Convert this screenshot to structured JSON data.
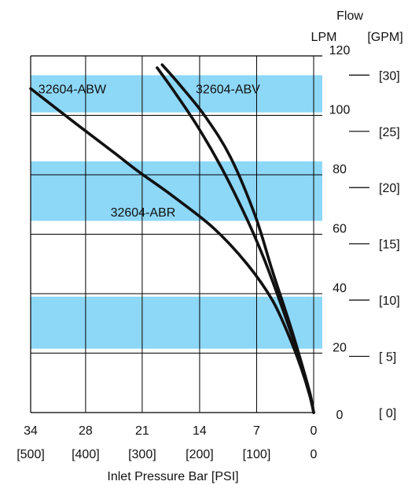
{
  "chart_data": {
    "type": "line",
    "title": "",
    "xlabel": "Inlet Pressure Bar [PSI]",
    "ylabel_title": "Flow",
    "ylabel_units_primary": "LPM",
    "ylabel_units_secondary": "[GPM]",
    "x_reversed": true,
    "xlim": [
      0,
      34
    ],
    "ylim": [
      0,
      120
    ],
    "x_ticks_bar": [
      "34",
      "28",
      "21",
      "14",
      "7",
      "0"
    ],
    "x_ticks_psi": [
      "[500]",
      "[400]",
      "[300]",
      "[200]",
      "[100]",
      "0"
    ],
    "x_tick_values": [
      34,
      27.4,
      20.6,
      13.7,
      6.85,
      0
    ],
    "x_grid": [
      34,
      27.4,
      20.6,
      13.7,
      6.85,
      0
    ],
    "y_ticks_lpm": [
      "0",
      "20",
      "40",
      "60",
      "80",
      "100",
      "120"
    ],
    "y_tick_values_lpm": [
      0,
      20,
      40,
      60,
      80,
      100,
      120
    ],
    "y_ticks_gpm": [
      "[ 0]",
      "[ 5]",
      "[10]",
      "[15]",
      "[20]",
      "[25]",
      "[30]"
    ],
    "y_tick_values_gpm": [
      0,
      5,
      10,
      15,
      20,
      25,
      30
    ],
    "lpm_per_gpm": 3.785,
    "bands": [
      [
        113.5,
        101
      ],
      [
        84.5,
        64.5
      ],
      [
        39,
        21.5
      ]
    ],
    "band_color": "#8dd7f7",
    "line_color": "#111111",
    "series": [
      {
        "name": "32604-ABW",
        "points": [
          [
            18.8,
            116
          ],
          [
            17,
            109
          ],
          [
            14,
            96.5
          ],
          [
            11,
            82
          ],
          [
            8,
            65
          ],
          [
            6,
            52
          ],
          [
            4,
            37
          ],
          [
            2.5,
            25
          ],
          [
            1.2,
            14
          ],
          [
            0.4,
            6
          ],
          [
            0,
            0
          ]
        ],
        "label_x": 29,
        "label_y": 109
      },
      {
        "name": "32604-ABV",
        "points": [
          [
            18.2,
            117
          ],
          [
            16,
            110
          ],
          [
            13,
            99.5
          ],
          [
            10,
            86
          ],
          [
            7,
            66
          ],
          [
            5,
            48
          ],
          [
            3,
            31
          ],
          [
            1.7,
            19
          ],
          [
            0.8,
            10
          ],
          [
            0.2,
            3
          ],
          [
            0,
            0
          ]
        ],
        "label_x": 10.3,
        "label_y": 109
      },
      {
        "name": "32604-ABR",
        "points": [
          [
            34,
            109
          ],
          [
            28,
            96
          ],
          [
            24,
            87.5
          ],
          [
            21,
            81
          ],
          [
            17,
            73
          ],
          [
            12,
            62
          ],
          [
            8,
            50
          ],
          [
            5,
            38
          ],
          [
            3,
            26
          ],
          [
            1.5,
            15
          ],
          [
            0.5,
            6
          ],
          [
            0,
            0
          ]
        ],
        "label_x": 20.5,
        "label_y": 67.5
      }
    ]
  }
}
